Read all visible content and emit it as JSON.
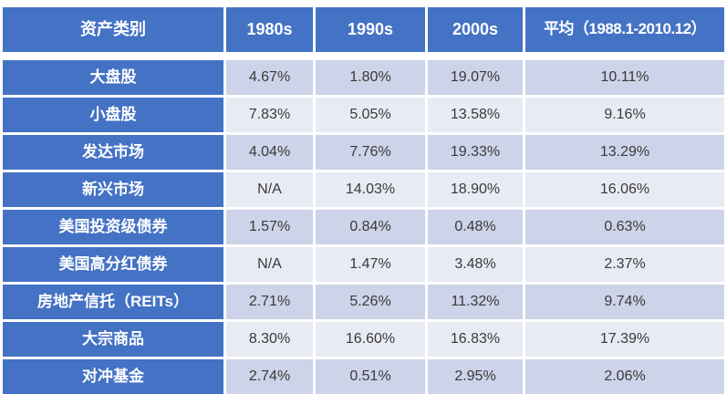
{
  "colors": {
    "header_bg": "#4472C4",
    "row_label_bg": "#4472C4",
    "band_dark": "#CDD3E8",
    "band_light": "#E9EBF4",
    "header_text": "#FFFFFF",
    "value_text": "#3A3A3A",
    "gridline": "#FFFFFF"
  },
  "chart_data": {
    "type": "table",
    "title": "",
    "columns": [
      "资产类别",
      "1980s",
      "1990s",
      "2000s",
      "平均（1988.1-2010.12）"
    ],
    "rows": [
      {
        "label": "大盘股",
        "values": [
          "4.67%",
          "1.80%",
          "19.07%",
          "10.11%"
        ]
      },
      {
        "label": "小盘股",
        "values": [
          "7.83%",
          "5.05%",
          "13.58%",
          "9.16%"
        ]
      },
      {
        "label": "发达市场",
        "values": [
          "4.04%",
          "7.76%",
          "19.33%",
          "13.29%"
        ]
      },
      {
        "label": "新兴市场",
        "values": [
          "N/A",
          "14.03%",
          "18.90%",
          "16.06%"
        ]
      },
      {
        "label": "美国投资级债券",
        "values": [
          "1.57%",
          "0.84%",
          "0.48%",
          "0.63%"
        ]
      },
      {
        "label": "美国高分红债券",
        "values": [
          "N/A",
          "1.47%",
          "3.48%",
          "2.37%"
        ]
      },
      {
        "label": "房地产信托（REITs）",
        "values": [
          "2.71%",
          "5.26%",
          "11.32%",
          "9.74%"
        ]
      },
      {
        "label": "大宗商品",
        "values": [
          "8.30%",
          "16.60%",
          "16.83%",
          "17.39%"
        ]
      },
      {
        "label": "对冲基金",
        "values": [
          "2.74%",
          "0.51%",
          "2.95%",
          "2.06%"
        ]
      }
    ]
  }
}
